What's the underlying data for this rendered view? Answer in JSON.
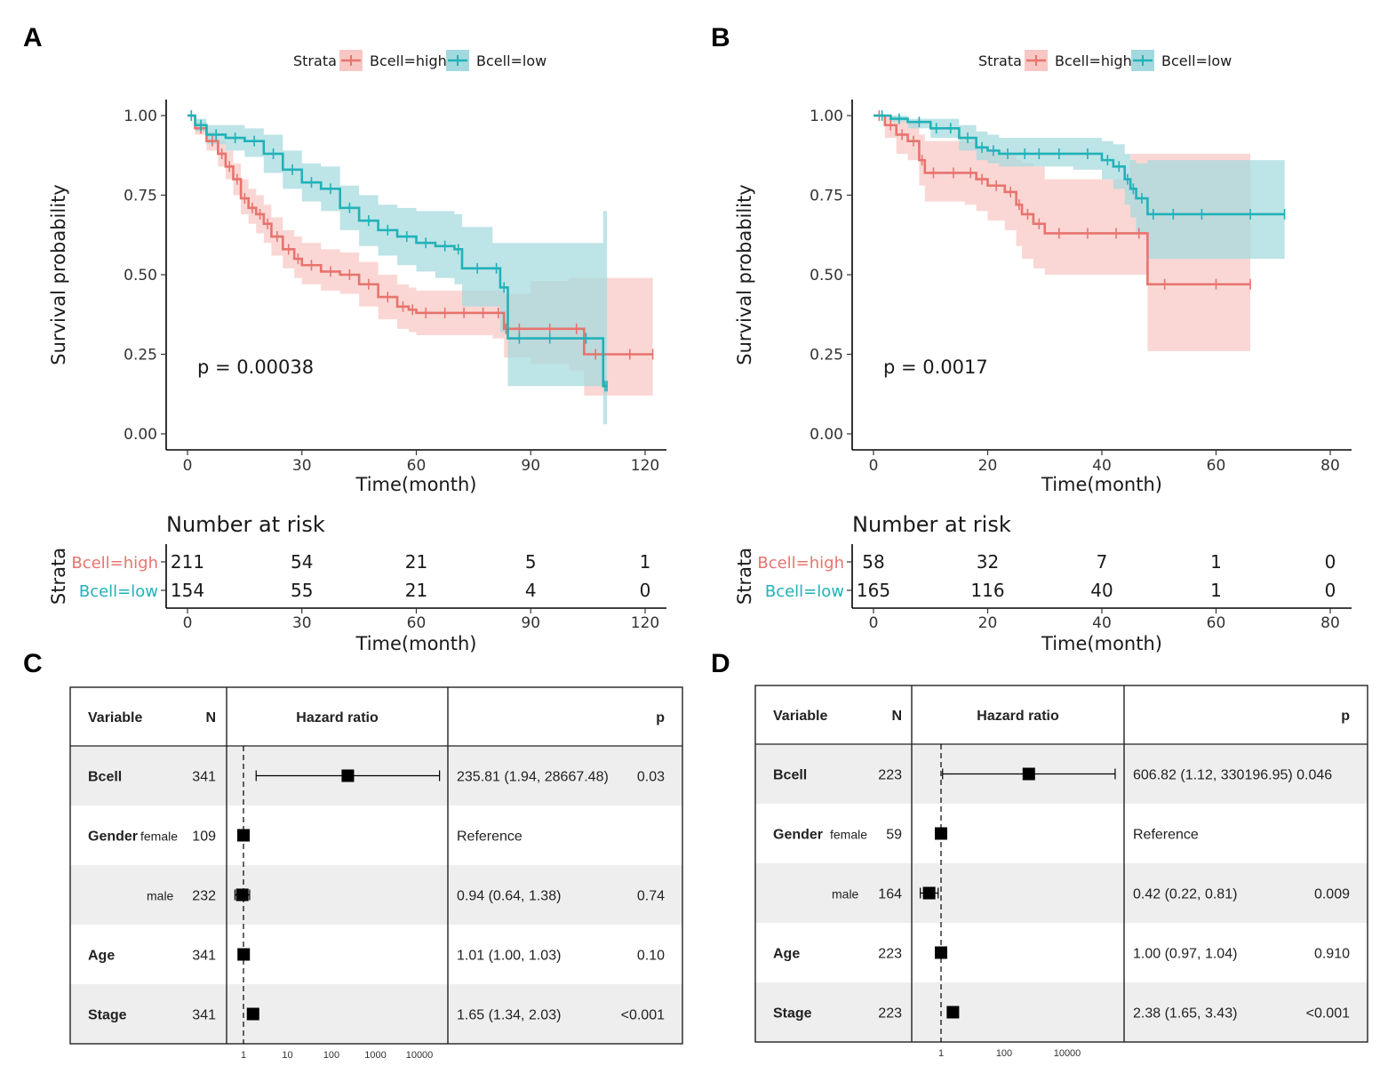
{
  "panels": [
    "A",
    "B",
    "C",
    "D"
  ],
  "colors": {
    "high": "#E8736E",
    "low": "#20B2B8",
    "high_fill": "#F8C7C4",
    "low_fill": "#A3D9DE",
    "row_shade": "#EEEEEE"
  },
  "chart_data": [
    {
      "id": "A",
      "type": "line",
      "subtype": "kaplan-meier",
      "legend": {
        "title": "Strata",
        "entries": [
          "Bcell=high",
          "Bcell=low"
        ],
        "position": "top"
      },
      "xlabel": "Time(month)",
      "ylabel": "Survival probability",
      "xlim": [
        0,
        120
      ],
      "ylim": [
        0,
        1
      ],
      "xticks": [
        "0",
        "30",
        "60",
        "90",
        "120"
      ],
      "yticks": [
        "0.00",
        "0.25",
        "0.50",
        "0.75",
        "1.00"
      ],
      "pvalue": "p = 0.00038",
      "series": [
        {
          "name": "Bcell=high",
          "x": [
            0,
            2,
            5,
            8,
            10,
            12,
            14,
            16,
            18,
            20,
            22,
            25,
            28,
            30,
            35,
            40,
            45,
            50,
            55,
            58,
            60,
            65,
            70,
            75,
            80,
            83,
            84,
            90,
            100,
            104,
            110,
            122
          ],
          "y": [
            1,
            0.96,
            0.92,
            0.88,
            0.84,
            0.8,
            0.74,
            0.71,
            0.69,
            0.66,
            0.62,
            0.58,
            0.55,
            0.53,
            0.51,
            0.5,
            0.47,
            0.43,
            0.4,
            0.39,
            0.38,
            0.38,
            0.38,
            0.38,
            0.38,
            0.33,
            0.33,
            0.33,
            0.33,
            0.25,
            0.25,
            0.25
          ],
          "lower": [
            1,
            0.94,
            0.89,
            0.84,
            0.8,
            0.75,
            0.69,
            0.66,
            0.63,
            0.6,
            0.56,
            0.52,
            0.49,
            0.47,
            0.45,
            0.44,
            0.4,
            0.36,
            0.33,
            0.32,
            0.31,
            0.31,
            0.31,
            0.31,
            0.3,
            0.24,
            0.24,
            0.22,
            0.2,
            0.12,
            0.12,
            0.12
          ],
          "upper": [
            1,
            0.98,
            0.95,
            0.92,
            0.89,
            0.85,
            0.8,
            0.77,
            0.75,
            0.72,
            0.68,
            0.64,
            0.62,
            0.6,
            0.58,
            0.57,
            0.54,
            0.5,
            0.47,
            0.46,
            0.45,
            0.45,
            0.45,
            0.45,
            0.45,
            0.44,
            0.44,
            0.48,
            0.49,
            0.49,
            0.49,
            0.49
          ]
        },
        {
          "name": "Bcell=low",
          "x": [
            0,
            2,
            5,
            10,
            15,
            20,
            25,
            30,
            35,
            40,
            45,
            50,
            55,
            60,
            65,
            70,
            72,
            80,
            82,
            84,
            90,
            100,
            109,
            110
          ],
          "y": [
            1,
            0.97,
            0.94,
            0.93,
            0.92,
            0.88,
            0.83,
            0.79,
            0.77,
            0.71,
            0.67,
            0.64,
            0.62,
            0.6,
            0.59,
            0.58,
            0.52,
            0.52,
            0.46,
            0.3,
            0.3,
            0.3,
            0.15,
            0.15
          ],
          "lower": [
            1,
            0.95,
            0.91,
            0.89,
            0.87,
            0.82,
            0.77,
            0.73,
            0.7,
            0.64,
            0.59,
            0.56,
            0.53,
            0.51,
            0.49,
            0.47,
            0.4,
            0.4,
            0.32,
            0.15,
            0.15,
            0.15,
            0.03,
            0.03
          ],
          "upper": [
            1,
            0.99,
            0.97,
            0.97,
            0.96,
            0.94,
            0.89,
            0.85,
            0.84,
            0.78,
            0.75,
            0.72,
            0.71,
            0.7,
            0.7,
            0.69,
            0.65,
            0.6,
            0.6,
            0.6,
            0.6,
            0.6,
            0.7,
            0.7
          ]
        }
      ],
      "risk_table": {
        "title": "Number at risk",
        "ylabel": "Strata",
        "xlabel": "Time(month)",
        "rows": [
          {
            "label": "Bcell=high",
            "values": [
              "211",
              "54",
              "21",
              "5",
              "1"
            ]
          },
          {
            "label": "Bcell=low",
            "values": [
              "154",
              "55",
              "21",
              "4",
              "0"
            ]
          }
        ]
      }
    },
    {
      "id": "B",
      "type": "line",
      "subtype": "kaplan-meier",
      "legend": {
        "title": "Strata",
        "entries": [
          "Bcell=high",
          "Bcell=low"
        ],
        "position": "top"
      },
      "xlabel": "Time(month)",
      "ylabel": "Survival probability",
      "xlim": [
        0,
        80
      ],
      "ylim": [
        0,
        1
      ],
      "xticks": [
        "0",
        "20",
        "40",
        "60",
        "80"
      ],
      "yticks": [
        "0.00",
        "0.25",
        "0.50",
        "0.75",
        "1.00"
      ],
      "pvalue": "p = 0.0017",
      "series": [
        {
          "name": "Bcell=high",
          "x": [
            0,
            2,
            4,
            6,
            8,
            9,
            12,
            16,
            18,
            20,
            23,
            25,
            26,
            28,
            30,
            35,
            40,
            45,
            48,
            54,
            66
          ],
          "y": [
            1,
            0.97,
            0.94,
            0.92,
            0.86,
            0.82,
            0.82,
            0.82,
            0.8,
            0.78,
            0.76,
            0.72,
            0.69,
            0.66,
            0.63,
            0.63,
            0.63,
            0.63,
            0.47,
            0.47,
            0.47
          ],
          "lower": [
            1,
            0.93,
            0.88,
            0.86,
            0.78,
            0.73,
            0.73,
            0.72,
            0.7,
            0.67,
            0.64,
            0.59,
            0.55,
            0.52,
            0.5,
            0.5,
            0.5,
            0.5,
            0.26,
            0.26,
            0.26
          ],
          "upper": [
            1,
            1,
            0.99,
            0.98,
            0.94,
            0.92,
            0.92,
            0.92,
            0.9,
            0.89,
            0.88,
            0.86,
            0.85,
            0.84,
            0.8,
            0.8,
            0.8,
            0.88,
            0.88,
            0.88,
            0.88
          ]
        },
        {
          "name": "Bcell=low",
          "x": [
            0,
            3,
            6,
            10,
            12,
            15,
            18,
            20,
            22,
            25,
            28,
            30,
            35,
            40,
            42,
            44,
            45,
            46,
            48,
            50,
            55,
            60,
            72
          ],
          "y": [
            1,
            0.99,
            0.98,
            0.96,
            0.96,
            0.93,
            0.9,
            0.89,
            0.88,
            0.88,
            0.88,
            0.88,
            0.88,
            0.86,
            0.84,
            0.8,
            0.77,
            0.74,
            0.69,
            0.69,
            0.69,
            0.69,
            0.69
          ],
          "lower": [
            1,
            0.98,
            0.96,
            0.93,
            0.93,
            0.89,
            0.86,
            0.85,
            0.84,
            0.84,
            0.84,
            0.84,
            0.83,
            0.8,
            0.77,
            0.72,
            0.68,
            0.63,
            0.55,
            0.55,
            0.55,
            0.55,
            0.55
          ],
          "upper": [
            1,
            1,
            0.99,
            0.99,
            0.99,
            0.97,
            0.95,
            0.94,
            0.93,
            0.93,
            0.93,
            0.93,
            0.93,
            0.92,
            0.91,
            0.88,
            0.86,
            0.85,
            0.86,
            0.86,
            0.86,
            0.86,
            0.86
          ]
        }
      ],
      "risk_table": {
        "title": "Number at risk",
        "ylabel": "Strata",
        "xlabel": "Time(month)",
        "rows": [
          {
            "label": "Bcell=high",
            "values": [
              "58",
              "32",
              "7",
              "1",
              "0"
            ]
          },
          {
            "label": "Bcell=low",
            "values": [
              "165",
              "116",
              "40",
              "1",
              "0"
            ]
          }
        ]
      }
    },
    {
      "id": "C",
      "type": "table",
      "subtype": "forest-plot",
      "headers": {
        "variable": "Variable",
        "n": "N",
        "hr": "Hazard ratio",
        "p": "p"
      },
      "axis_ticks": [
        "1",
        "10",
        "100",
        "1000",
        "10000"
      ],
      "rows": [
        {
          "variable": "Bcell",
          "level": "",
          "n": "341",
          "est": 235.81,
          "lo": 1.94,
          "hi": 28667.48,
          "text": "235.81 (1.94, 28667.48)",
          "p": "0.03",
          "shaded": true
        },
        {
          "variable": "Gender",
          "level": "female",
          "n": "109",
          "est": 1,
          "lo": 1,
          "hi": 1,
          "text": "Reference",
          "p": "",
          "shaded": false
        },
        {
          "variable": "",
          "level": "male",
          "n": "232",
          "est": 0.94,
          "lo": 0.64,
          "hi": 1.38,
          "text": "0.94 (0.64, 1.38)",
          "p": "0.74",
          "shaded": true
        },
        {
          "variable": "Age",
          "level": "",
          "n": "341",
          "est": 1.01,
          "lo": 1.0,
          "hi": 1.03,
          "text": "1.01 (1.00, 1.03)",
          "p": "0.10",
          "shaded": false
        },
        {
          "variable": "Stage",
          "level": "",
          "n": "341",
          "est": 1.65,
          "lo": 1.34,
          "hi": 2.03,
          "text": "1.65 (1.34, 2.03)",
          "p": "<0.001",
          "shaded": true
        }
      ]
    },
    {
      "id": "D",
      "type": "table",
      "subtype": "forest-plot",
      "headers": {
        "variable": "Variable",
        "n": "N",
        "hr": "Hazard ratio",
        "p": "p"
      },
      "axis_ticks": [
        "1",
        "100",
        "10000"
      ],
      "rows": [
        {
          "variable": "Bcell",
          "level": "",
          "n": "223",
          "est": 606.82,
          "lo": 1.12,
          "hi": 330196.95,
          "text": "606.82 (1.12, 330196.95) 0.046",
          "p": "",
          "shaded": true
        },
        {
          "variable": "Gender",
          "level": "female",
          "n": "59",
          "est": 1,
          "lo": 1,
          "hi": 1,
          "text": "Reference",
          "p": "",
          "shaded": false
        },
        {
          "variable": "",
          "level": "male",
          "n": "164",
          "est": 0.42,
          "lo": 0.22,
          "hi": 0.81,
          "text": "0.42 (0.22, 0.81)",
          "p": "0.009",
          "shaded": true
        },
        {
          "variable": "Age",
          "level": "",
          "n": "223",
          "est": 1.0,
          "lo": 0.97,
          "hi": 1.04,
          "text": "1.00 (0.97, 1.04)",
          "p": "0.910",
          "shaded": false
        },
        {
          "variable": "Stage",
          "level": "",
          "n": "223",
          "est": 2.38,
          "lo": 1.65,
          "hi": 3.43,
          "text": "2.38 (1.65, 3.43)",
          "p": "<0.001",
          "shaded": true
        }
      ]
    }
  ]
}
